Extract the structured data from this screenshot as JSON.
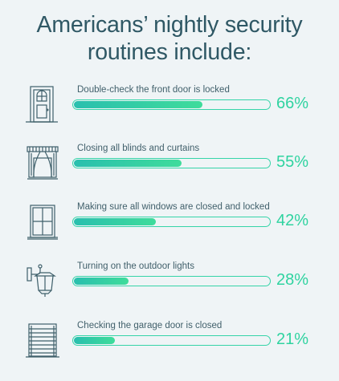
{
  "title_lines": [
    "Americans’ nightly security",
    "routines include:"
  ],
  "colors": {
    "title": "#2f5865",
    "accent": "#2fd3a0",
    "bar_start": "#29bfae",
    "bar_end": "#3fdc9b",
    "icon": "#3e5f6a",
    "background": "#eff4f6"
  },
  "chart_data": {
    "type": "bar",
    "orientation": "horizontal",
    "title": "Americans’ nightly security routines include:",
    "categories": [
      "Double-check the front door is locked",
      "Closing all blinds and curtains",
      "Making sure all windows are closed and locked",
      "Turning on the outdoor lights",
      "Checking the garage door is closed"
    ],
    "values": [
      66,
      55,
      42,
      28,
      21
    ],
    "value_labels": [
      "66%",
      "55%",
      "42%",
      "28%",
      "21%"
    ],
    "icons": [
      "front-door-icon",
      "curtains-icon",
      "window-icon",
      "outdoor-light-icon",
      "garage-door-icon"
    ],
    "xlim": [
      0,
      100
    ],
    "grid": false,
    "legend": "none"
  }
}
